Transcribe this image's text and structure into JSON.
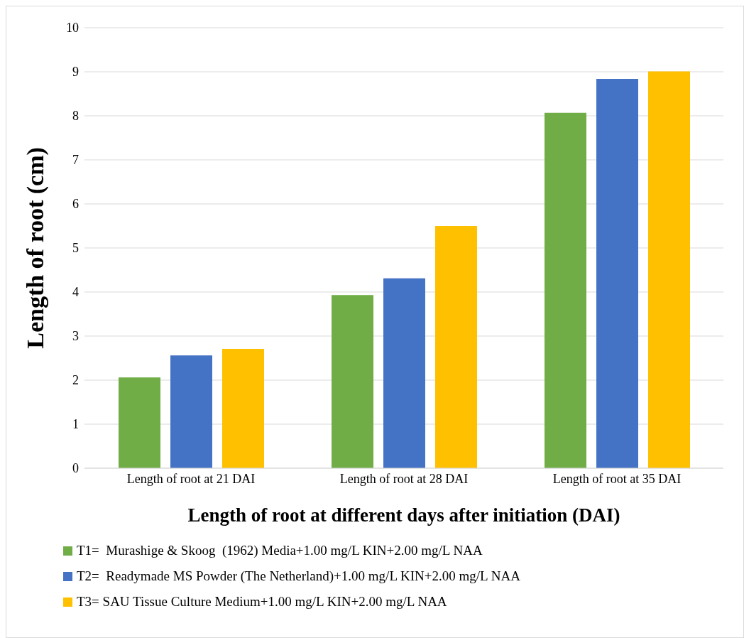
{
  "chart_data": {
    "type": "bar",
    "xlabel": "Length of root at different days after initiation (DAI)",
    "ylabel": "Length of root (cm)",
    "categories": [
      "Length of root at 21 DAI",
      "Length of root at 28 DAI",
      "Length of root at 35 DAI"
    ],
    "series": [
      {
        "name": "T1=  Murashige & Skoog  (1962) Media+1.00 mg/L KIN+2.00 mg/L NAA",
        "color": "#70ad47",
        "values": [
          2.06,
          3.93,
          8.07
        ]
      },
      {
        "name": "T2=  Readymade MS Powder (The Netherland)+1.00 mg/L KIN+2.00 mg/L NAA",
        "color": "#4472c4",
        "values": [
          2.56,
          4.31,
          8.84
        ]
      },
      {
        "name": "T3= SAU Tissue Culture Medium+1.00 mg/L KIN+2.00 mg/L NAA",
        "color": "#ffc000",
        "values": [
          2.71,
          5.5,
          9.01
        ]
      }
    ],
    "ylim": [
      0,
      10
    ],
    "yticks": [
      0,
      1,
      2,
      3,
      4,
      5,
      6,
      7,
      8,
      9,
      10
    ],
    "grid": "y",
    "legend": "bottom"
  }
}
